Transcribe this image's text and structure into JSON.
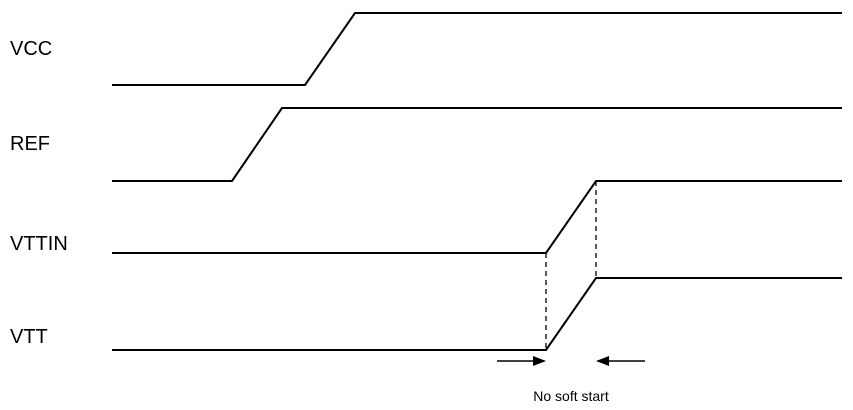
{
  "diagram": {
    "signals": [
      {
        "label": "VCC"
      },
      {
        "label": "REF"
      },
      {
        "label": "VTTIN"
      },
      {
        "label": "VTT"
      }
    ],
    "annotation": {
      "text": "No soft start"
    }
  }
}
